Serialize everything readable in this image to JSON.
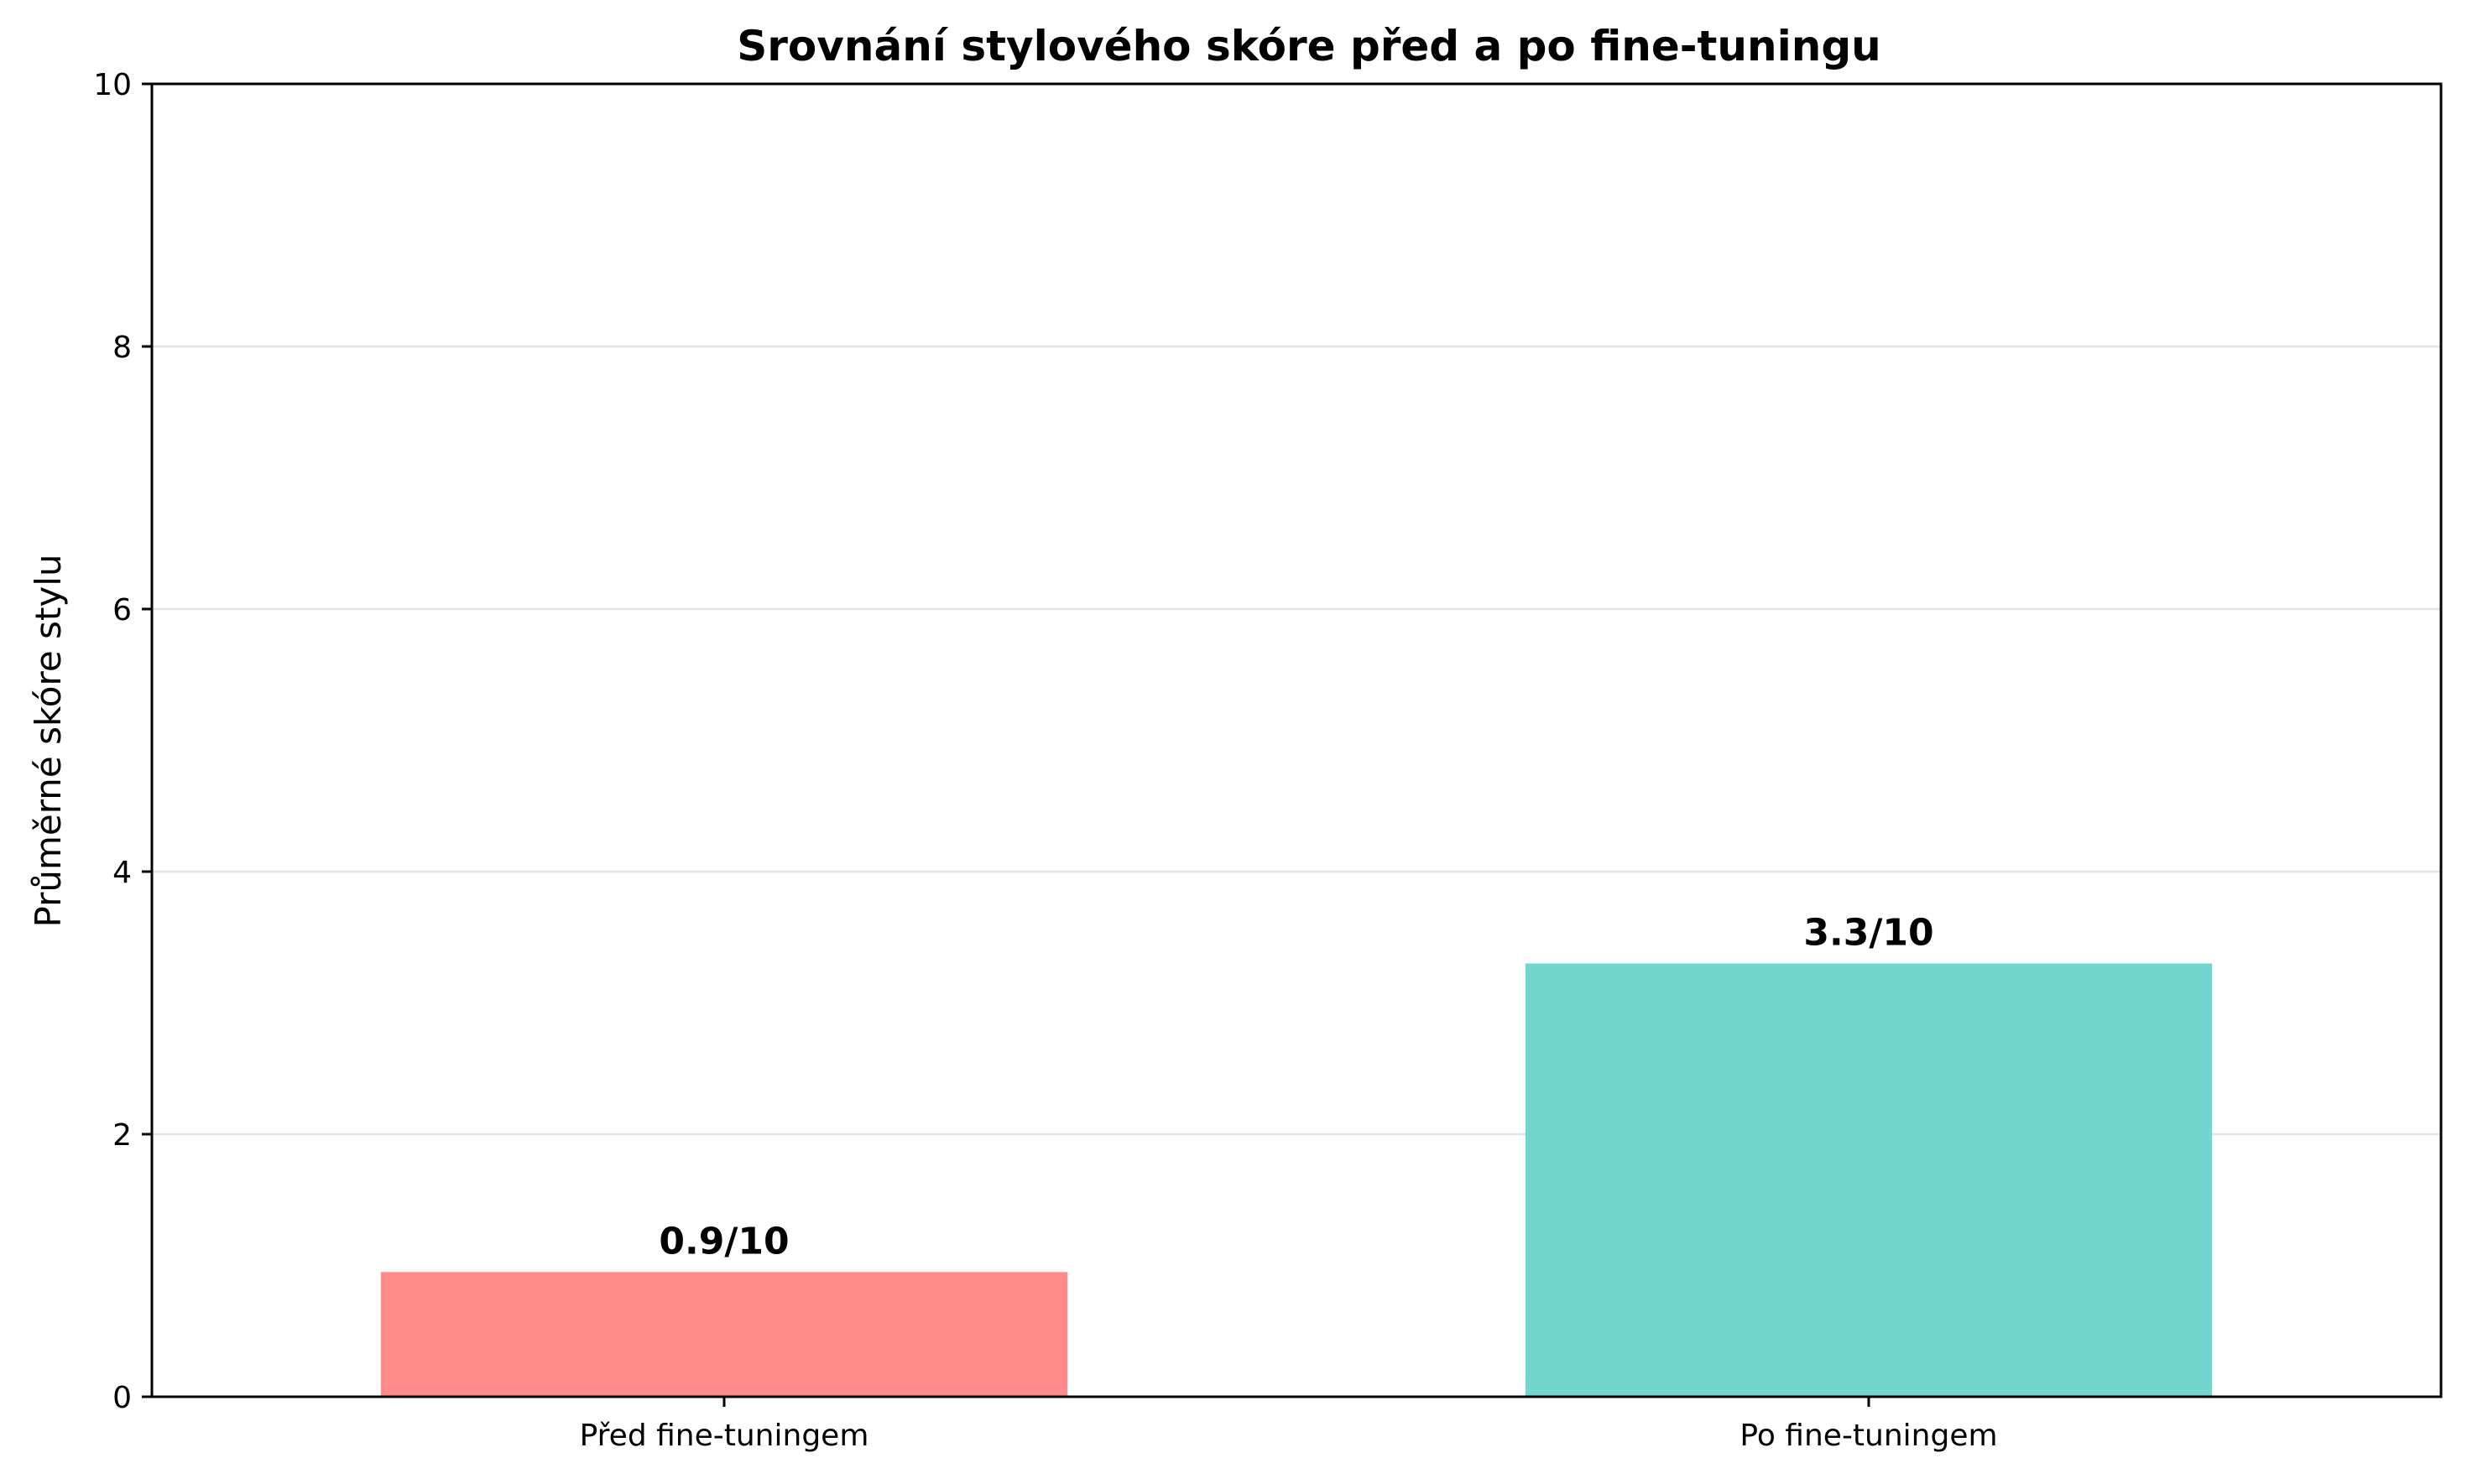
{
  "chart_data": {
    "type": "bar",
    "title": "Srovnání stylového skóre před a po fine-tuningu",
    "xlabel": "",
    "ylabel": "Průměrné skóre stylu",
    "categories": [
      "Před fine-tuningem",
      "Po fine-tuningem"
    ],
    "values": [
      0.95,
      3.3
    ],
    "data_labels": [
      "0.9/10",
      "3.3/10"
    ],
    "colors": [
      "#ff8a8a",
      "#73d5d0"
    ],
    "ylim": [
      0,
      10
    ],
    "yticks": [
      0,
      2,
      4,
      6,
      8,
      10
    ],
    "grid": "horizontal",
    "legend": "none"
  }
}
